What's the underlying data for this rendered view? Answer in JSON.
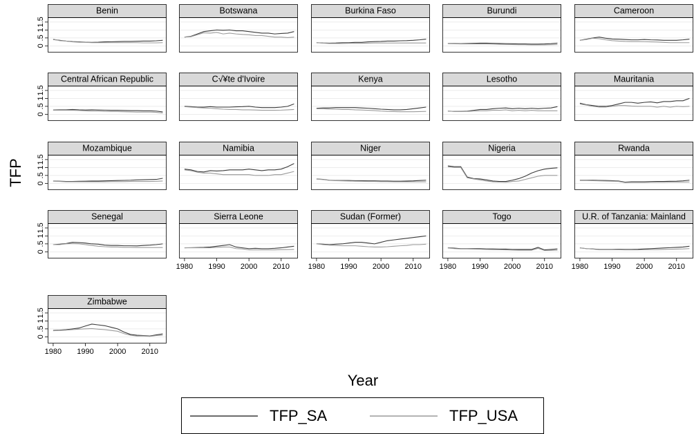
{
  "chart_data": {
    "type": "line",
    "ylabel": "TFP",
    "xlabel": "Year",
    "x": [
      1980,
      1982,
      1984,
      1986,
      1988,
      1990,
      1992,
      1994,
      1996,
      1998,
      2000,
      2002,
      2004,
      2006,
      2008,
      2010,
      2012,
      2014
    ],
    "xlim": [
      1978.3,
      2015.2
    ],
    "xticks": [
      1980,
      1990,
      2000,
      2010
    ],
    "ylim": [
      -0.42,
      1.8
    ],
    "yticks": [
      0,
      {
        "value": 0.5,
        "label": ".5"
      },
      1,
      1.5
    ],
    "grid": true,
    "series": [
      {
        "name": "TFP_SA",
        "color": "#3a3a3a"
      },
      {
        "name": "TFP_USA",
        "color": "#9a9a9a"
      }
    ],
    "panels": [
      {
        "title": "Benin",
        "series": [
          {
            "values": [
              0.4,
              0.35,
              0.3,
              0.27,
              0.25,
              0.23,
              0.22,
              0.23,
              0.25,
              0.26,
              0.27,
              0.28,
              0.28,
              0.29,
              0.3,
              0.3,
              0.32,
              0.35
            ]
          },
          {
            "values": [
              0.42,
              0.33,
              0.3,
              0.25,
              0.23,
              0.22,
              0.2,
              0.2,
              0.2,
              0.2,
              0.2,
              0.2,
              0.2,
              0.2,
              0.19,
              0.19,
              0.19,
              0.2
            ]
          }
        ]
      },
      {
        "title": "Botswana",
        "series": [
          {
            "values": [
              0.55,
              0.6,
              0.75,
              0.9,
              0.95,
              1.0,
              0.98,
              1.0,
              0.95,
              0.95,
              0.9,
              0.85,
              0.8,
              0.8,
              0.75,
              0.78,
              0.8,
              0.9
            ]
          },
          {
            "values": [
              0.55,
              0.58,
              0.7,
              0.82,
              0.8,
              0.85,
              0.75,
              0.8,
              0.75,
              0.72,
              0.7,
              0.65,
              0.65,
              0.6,
              0.55,
              0.55,
              0.52,
              0.55
            ]
          }
        ]
      },
      {
        "title": "Burkina Faso",
        "series": [
          {
            "values": [
              0.2,
              0.18,
              0.17,
              0.18,
              0.2,
              0.2,
              0.22,
              0.22,
              0.25,
              0.27,
              0.28,
              0.3,
              0.3,
              0.32,
              0.33,
              0.35,
              0.38,
              0.42
            ]
          },
          {
            "values": [
              0.2,
              0.17,
              0.15,
              0.15,
              0.15,
              0.16,
              0.16,
              0.16,
              0.17,
              0.18,
              0.18,
              0.18,
              0.18,
              0.18,
              0.18,
              0.18,
              0.18,
              0.18
            ]
          }
        ]
      },
      {
        "title": "Burundi",
        "series": [
          {
            "values": [
              0.15,
              0.15,
              0.14,
              0.15,
              0.16,
              0.17,
              0.17,
              0.16,
              0.15,
              0.14,
              0.13,
              0.12,
              0.12,
              0.11,
              0.11,
              0.12,
              0.14,
              0.17
            ]
          },
          {
            "values": [
              0.14,
              0.13,
              0.12,
              0.12,
              0.12,
              0.12,
              0.12,
              0.11,
              0.1,
              0.09,
              0.08,
              0.07,
              0.07,
              0.06,
              0.06,
              0.06,
              0.07,
              0.08
            ]
          }
        ]
      },
      {
        "title": "Cameroon",
        "series": [
          {
            "values": [
              0.35,
              0.42,
              0.5,
              0.55,
              0.48,
              0.43,
              0.42,
              0.4,
              0.38,
              0.38,
              0.4,
              0.38,
              0.37,
              0.35,
              0.35,
              0.35,
              0.38,
              0.42
            ]
          },
          {
            "values": [
              0.35,
              0.4,
              0.48,
              0.45,
              0.38,
              0.33,
              0.3,
              0.28,
              0.27,
              0.27,
              0.26,
              0.25,
              0.24,
              0.22,
              0.2,
              0.2,
              0.2,
              0.2
            ]
          }
        ]
      },
      {
        "title": "Central African Republic",
        "series": [
          {
            "values": [
              0.27,
              0.28,
              0.28,
              0.3,
              0.28,
              0.27,
              0.28,
              0.27,
              0.26,
              0.25,
              0.25,
              0.24,
              0.23,
              0.23,
              0.22,
              0.22,
              0.2,
              0.15
            ]
          },
          {
            "values": [
              0.25,
              0.25,
              0.25,
              0.25,
              0.24,
              0.22,
              0.2,
              0.2,
              0.18,
              0.17,
              0.17,
              0.16,
              0.15,
              0.14,
              0.14,
              0.14,
              0.12,
              0.08
            ]
          }
        ]
      },
      {
        "title": "C√¥te d'Ivoire",
        "series": [
          {
            "values": [
              0.5,
              0.48,
              0.45,
              0.45,
              0.48,
              0.45,
              0.45,
              0.45,
              0.47,
              0.48,
              0.5,
              0.45,
              0.42,
              0.42,
              0.42,
              0.45,
              0.5,
              0.65
            ]
          },
          {
            "values": [
              0.48,
              0.45,
              0.42,
              0.4,
              0.38,
              0.35,
              0.32,
              0.3,
              0.3,
              0.28,
              0.28,
              0.27,
              0.25,
              0.25,
              0.25,
              0.26,
              0.28,
              0.3
            ]
          }
        ]
      },
      {
        "title": "Kenya",
        "series": [
          {
            "values": [
              0.38,
              0.4,
              0.4,
              0.42,
              0.42,
              0.42,
              0.42,
              0.4,
              0.38,
              0.35,
              0.32,
              0.3,
              0.28,
              0.28,
              0.3,
              0.35,
              0.4,
              0.45
            ]
          },
          {
            "values": [
              0.35,
              0.35,
              0.33,
              0.32,
              0.3,
              0.3,
              0.28,
              0.27,
              0.25,
              0.23,
              0.2,
              0.18,
              0.17,
              0.16,
              0.16,
              0.16,
              0.17,
              0.18
            ]
          }
        ]
      },
      {
        "title": "Lesotho",
        "series": [
          {
            "values": [
              0.2,
              0.18,
              0.18,
              0.2,
              0.25,
              0.3,
              0.3,
              0.35,
              0.38,
              0.4,
              0.35,
              0.38,
              0.35,
              0.38,
              0.35,
              0.38,
              0.4,
              0.48
            ]
          },
          {
            "values": [
              0.2,
              0.18,
              0.17,
              0.18,
              0.2,
              0.22,
              0.22,
              0.25,
              0.25,
              0.28,
              0.22,
              0.25,
              0.22,
              0.25,
              0.22,
              0.22,
              0.22,
              0.22
            ]
          }
        ]
      },
      {
        "title": "Mauritania",
        "series": [
          {
            "values": [
              0.7,
              0.6,
              0.55,
              0.5,
              0.5,
              0.55,
              0.65,
              0.75,
              0.75,
              0.7,
              0.75,
              0.78,
              0.72,
              0.8,
              0.8,
              0.85,
              0.85,
              1.0
            ]
          },
          {
            "values": [
              0.65,
              0.58,
              0.5,
              0.45,
              0.45,
              0.5,
              0.55,
              0.55,
              0.52,
              0.5,
              0.5,
              0.5,
              0.45,
              0.5,
              0.45,
              0.5,
              0.48,
              0.5
            ]
          }
        ]
      },
      {
        "title": "Mozambique",
        "series": [
          {
            "values": [
              0.15,
              0.14,
              0.12,
              0.12,
              0.13,
              0.14,
              0.15,
              0.15,
              0.16,
              0.17,
              0.18,
              0.19,
              0.2,
              0.22,
              0.23,
              0.24,
              0.25,
              0.32
            ]
          },
          {
            "values": [
              0.14,
              0.12,
              0.1,
              0.1,
              0.1,
              0.1,
              0.1,
              0.1,
              0.1,
              0.11,
              0.11,
              0.11,
              0.12,
              0.12,
              0.12,
              0.12,
              0.13,
              0.15
            ]
          }
        ]
      },
      {
        "title": "Namibia",
        "series": [
          {
            "values": [
              0.9,
              0.85,
              0.75,
              0.72,
              0.8,
              0.78,
              0.8,
              0.85,
              0.85,
              0.85,
              0.9,
              0.85,
              0.8,
              0.85,
              0.85,
              0.9,
              1.05,
              1.25
            ]
          },
          {
            "values": [
              0.85,
              0.8,
              0.7,
              0.65,
              0.65,
              0.6,
              0.55,
              0.55,
              0.55,
              0.55,
              0.55,
              0.5,
              0.5,
              0.5,
              0.55,
              0.55,
              0.65,
              0.75
            ]
          }
        ]
      },
      {
        "title": "Niger",
        "series": [
          {
            "values": [
              0.28,
              0.25,
              0.2,
              0.18,
              0.18,
              0.18,
              0.17,
              0.17,
              0.16,
              0.16,
              0.15,
              0.15,
              0.14,
              0.14,
              0.15,
              0.16,
              0.18,
              0.2
            ]
          },
          {
            "values": [
              0.27,
              0.24,
              0.19,
              0.17,
              0.16,
              0.15,
              0.14,
              0.13,
              0.12,
              0.12,
              0.11,
              0.11,
              0.1,
              0.1,
              0.1,
              0.1,
              0.1,
              0.1
            ]
          }
        ]
      },
      {
        "title": "Nigeria",
        "series": [
          {
            "values": [
              1.1,
              1.05,
              1.05,
              0.4,
              0.3,
              0.28,
              0.22,
              0.15,
              0.12,
              0.12,
              0.2,
              0.3,
              0.45,
              0.65,
              0.8,
              0.9,
              0.95,
              0.98
            ]
          },
          {
            "values": [
              1.05,
              1.0,
              1.0,
              0.35,
              0.28,
              0.22,
              0.15,
              0.1,
              0.08,
              0.07,
              0.12,
              0.15,
              0.25,
              0.35,
              0.45,
              0.5,
              0.5,
              0.5
            ]
          }
        ]
      },
      {
        "title": "Rwanda",
        "series": [
          {
            "values": [
              0.2,
              0.2,
              0.2,
              0.19,
              0.18,
              0.17,
              0.15,
              0.08,
              0.1,
              0.1,
              0.1,
              0.11,
              0.12,
              0.12,
              0.13,
              0.14,
              0.16,
              0.2
            ]
          },
          {
            "values": [
              0.18,
              0.18,
              0.17,
              0.16,
              0.15,
              0.14,
              0.12,
              0.05,
              0.06,
              0.06,
              0.06,
              0.07,
              0.07,
              0.07,
              0.08,
              0.08,
              0.08,
              0.09
            ]
          }
        ]
      },
      {
        "title": "Senegal",
        "series": [
          {
            "values": [
              0.45,
              0.48,
              0.52,
              0.6,
              0.58,
              0.55,
              0.5,
              0.48,
              0.42,
              0.4,
              0.4,
              0.38,
              0.38,
              0.37,
              0.4,
              0.42,
              0.45,
              0.5
            ]
          },
          {
            "values": [
              0.45,
              0.45,
              0.5,
              0.52,
              0.5,
              0.45,
              0.4,
              0.35,
              0.32,
              0.3,
              0.3,
              0.28,
              0.28,
              0.27,
              0.27,
              0.27,
              0.27,
              0.27
            ]
          }
        ]
      },
      {
        "title": "Sierra Leone",
        "series": [
          {
            "values": [
              0.25,
              0.26,
              0.27,
              0.28,
              0.3,
              0.35,
              0.4,
              0.45,
              0.3,
              0.25,
              0.2,
              0.22,
              0.2,
              0.2,
              0.22,
              0.25,
              0.3,
              0.35
            ]
          },
          {
            "values": [
              0.25,
              0.25,
              0.25,
              0.25,
              0.25,
              0.28,
              0.3,
              0.3,
              0.2,
              0.18,
              0.12,
              0.12,
              0.12,
              0.12,
              0.12,
              0.13,
              0.14,
              0.15
            ]
          }
        ]
      },
      {
        "title": "Sudan (Former)",
        "series": [
          {
            "values": [
              0.5,
              0.48,
              0.45,
              0.48,
              0.5,
              0.55,
              0.6,
              0.6,
              0.55,
              0.5,
              0.6,
              0.7,
              0.75,
              0.8,
              0.85,
              0.9,
              0.95,
              1.0
            ]
          },
          {
            "values": [
              0.5,
              0.45,
              0.42,
              0.4,
              0.38,
              0.38,
              0.38,
              0.35,
              0.32,
              0.3,
              0.3,
              0.32,
              0.35,
              0.38,
              0.4,
              0.45,
              0.45,
              0.48
            ]
          }
        ]
      },
      {
        "title": "Togo",
        "series": [
          {
            "values": [
              0.25,
              0.23,
              0.2,
              0.2,
              0.2,
              0.2,
              0.18,
              0.18,
              0.17,
              0.17,
              0.15,
              0.15,
              0.15,
              0.15,
              0.28,
              0.12,
              0.15,
              0.18
            ]
          },
          {
            "values": [
              0.24,
              0.2,
              0.18,
              0.18,
              0.17,
              0.16,
              0.15,
              0.14,
              0.13,
              0.12,
              0.11,
              0.1,
              0.1,
              0.1,
              0.22,
              0.08,
              0.09,
              0.1
            ]
          }
        ]
      },
      {
        "title": "U.R. of Tanzania: Mainland",
        "series": [
          {
            "values": [
              0.25,
              0.2,
              0.18,
              0.15,
              0.15,
              0.15,
              0.16,
              0.15,
              0.15,
              0.16,
              0.18,
              0.2,
              0.22,
              0.24,
              0.26,
              0.28,
              0.3,
              0.35
            ]
          },
          {
            "values": [
              0.24,
              0.2,
              0.17,
              0.13,
              0.13,
              0.13,
              0.13,
              0.12,
              0.12,
              0.12,
              0.13,
              0.14,
              0.14,
              0.15,
              0.16,
              0.17,
              0.18,
              0.2
            ]
          }
        ]
      },
      {
        "title": "Zimbabwe",
        "series": [
          {
            "values": [
              0.4,
              0.42,
              0.45,
              0.5,
              0.55,
              0.68,
              0.8,
              0.75,
              0.7,
              0.6,
              0.5,
              0.3,
              0.15,
              0.1,
              0.08,
              0.05,
              0.12,
              0.18
            ]
          },
          {
            "values": [
              0.38,
              0.4,
              0.42,
              0.45,
              0.48,
              0.5,
              0.52,
              0.48,
              0.45,
              0.4,
              0.35,
              0.2,
              0.1,
              0.05,
              0.05,
              0.03,
              0.08,
              0.1
            ]
          }
        ]
      }
    ]
  }
}
